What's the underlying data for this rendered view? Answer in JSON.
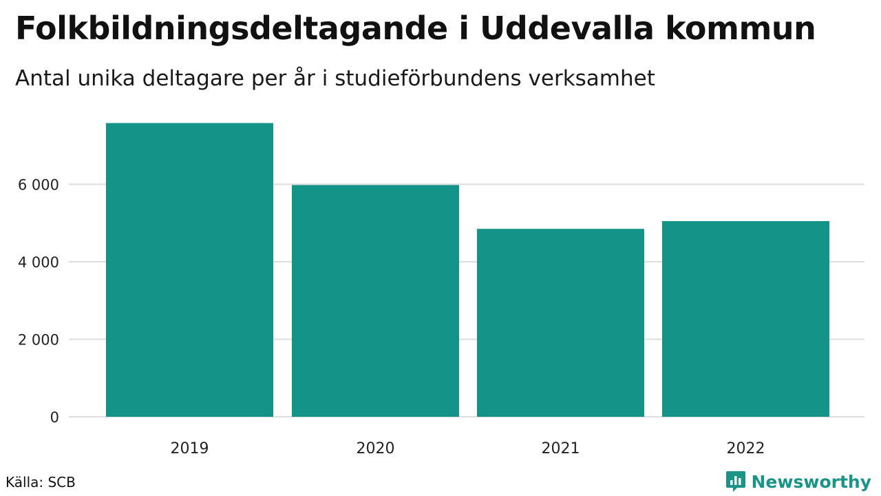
{
  "header": {
    "title": "Folkbildningsdeltagande i Uddevalla kommun",
    "subtitle": "Antal unika deltagare per år i studieförbundens verksamhet"
  },
  "footer": {
    "source": "Källa: SCB",
    "brand": "Newsworthy",
    "brand_icon": "bar-chart-speech-bubble-icon"
  },
  "colors": {
    "bar": "#149488",
    "grid": "#dddddd",
    "brand": "#1a9487"
  },
  "chart_data": {
    "type": "bar",
    "categories": [
      "2019",
      "2020",
      "2021",
      "2022"
    ],
    "values": [
      7580,
      5980,
      4850,
      5050
    ],
    "yticks": [
      0,
      2000,
      4000,
      6000
    ],
    "ytick_labels": [
      "0",
      "2 000",
      "4 000",
      "6 000"
    ],
    "ylim": [
      0,
      8000
    ],
    "grid": true,
    "xlabel": "",
    "ylabel": ""
  }
}
